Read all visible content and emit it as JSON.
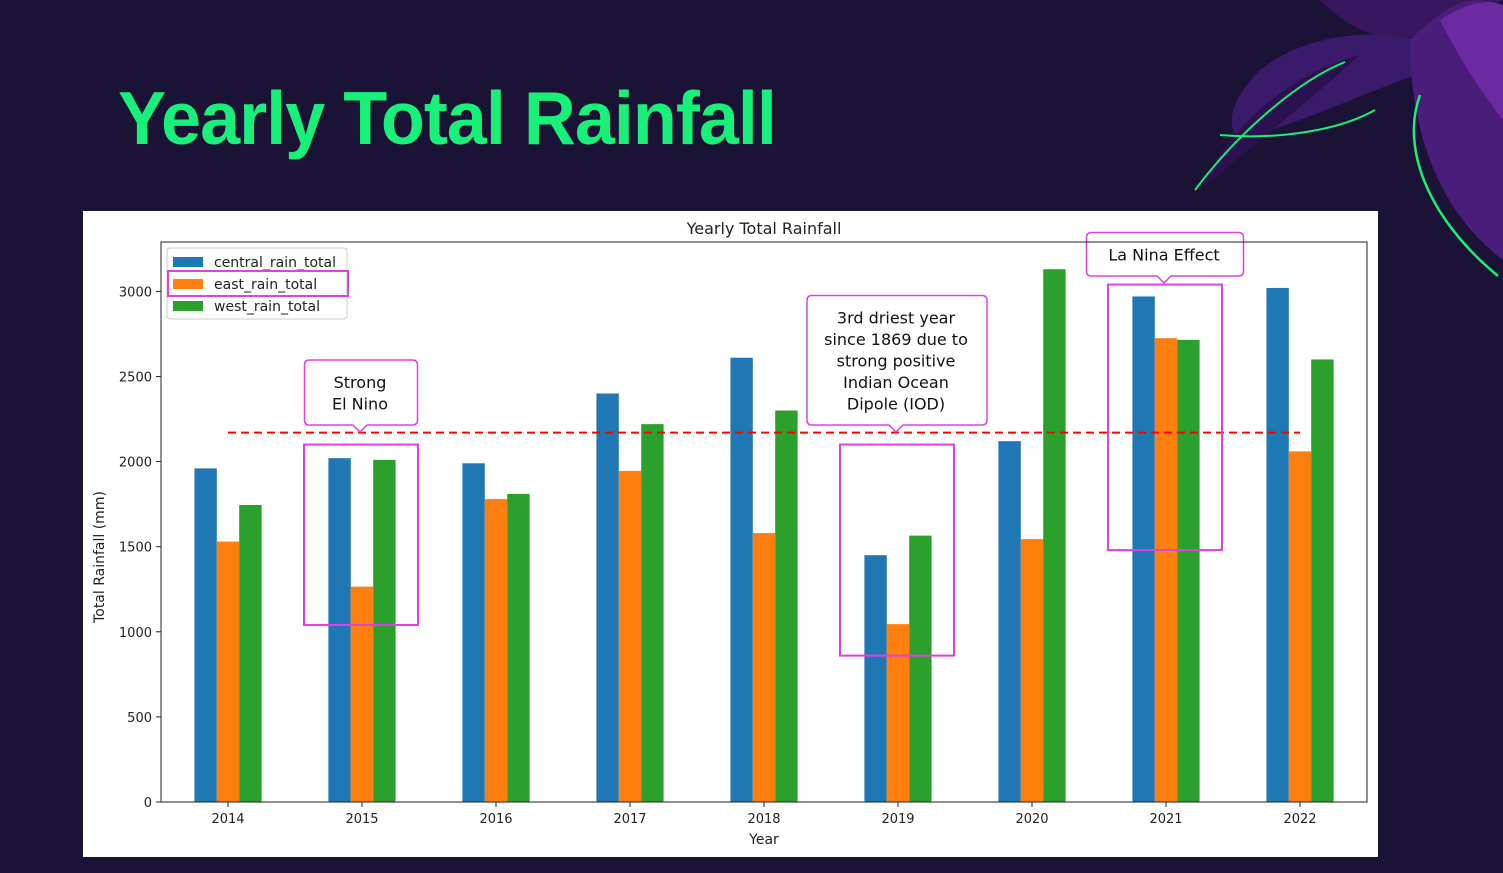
{
  "slide": {
    "title": "Yearly Total Rainfall"
  },
  "chart_data": {
    "type": "bar",
    "title": "Yearly Total Rainfall",
    "xlabel": "Year",
    "ylabel": "Total Rainfall (mm)",
    "ylim": [
      0,
      3290
    ],
    "yticks": [
      0,
      500,
      1000,
      1500,
      2000,
      2500,
      3000
    ],
    "categories": [
      "2014",
      "2015",
      "2016",
      "2017",
      "2018",
      "2019",
      "2020",
      "2021",
      "2022"
    ],
    "series": [
      {
        "name": "central_rain_total",
        "color": "#1f77b4",
        "values": [
          1960,
          2020,
          1990,
          2400,
          2610,
          1450,
          2120,
          2970,
          3020
        ]
      },
      {
        "name": "east_rain_total",
        "color": "#ff7f0e",
        "values": [
          1530,
          1265,
          1780,
          1945,
          1580,
          1045,
          1545,
          2725,
          2060
        ]
      },
      {
        "name": "west_rain_total",
        "color": "#2ca02c",
        "values": [
          1745,
          2010,
          1810,
          2220,
          2300,
          1565,
          3130,
          2715,
          2600
        ]
      }
    ],
    "reference_line": {
      "value": 2170,
      "color": "#ff0000",
      "style": "dashed"
    },
    "legend_placement": "top-left",
    "highlight_color": "#e040e0",
    "annotations": [
      {
        "category": "2015",
        "lines": [
          "Strong",
          "El Nino"
        ],
        "box_range": [
          1040,
          2100
        ]
      },
      {
        "category": "2019",
        "lines": [
          "3rd driest year",
          "since 1869 due to",
          "strong positive",
          "Indian Ocean",
          "Dipole (IOD)"
        ],
        "box_range": [
          860,
          2100
        ]
      },
      {
        "category": "2021",
        "lines": [
          "La Nina Effect"
        ],
        "box_range": [
          1480,
          3040
        ]
      }
    ],
    "highlighted_legend_entry": "east_rain_total"
  }
}
